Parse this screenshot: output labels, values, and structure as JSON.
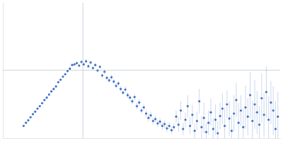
{
  "chart_data": {
    "type": "scatter",
    "color": "#4472c4",
    "grid": false,
    "tick_labels": false,
    "marker": "circle",
    "xlim": [
      0,
      6
    ],
    "ylim": [
      0,
      2.2
    ],
    "xticks": [],
    "yticks": [],
    "reference_lines": {
      "x": 1.732,
      "y": 1.104
    },
    "x": [
      0.45,
      0.5,
      0.55,
      0.6,
      0.65,
      0.7,
      0.75,
      0.8,
      0.85,
      0.9,
      0.95,
      1.0,
      1.05,
      1.1,
      1.15,
      1.2,
      1.25,
      1.3,
      1.35,
      1.4,
      1.45,
      1.5,
      1.55,
      1.6,
      1.65,
      1.7,
      1.75,
      1.8,
      1.85,
      1.9,
      1.95,
      2.0,
      2.05,
      2.1,
      2.15,
      2.2,
      2.25,
      2.3,
      2.35,
      2.4,
      2.45,
      2.5,
      2.55,
      2.6,
      2.65,
      2.7,
      2.75,
      2.8,
      2.85,
      2.9,
      2.95,
      3.0,
      3.05,
      3.1,
      3.15,
      3.2,
      3.25,
      3.3,
      3.35,
      3.4,
      3.45,
      3.5,
      3.55,
      3.6,
      3.65,
      3.7,
      3.75,
      3.8,
      3.85,
      3.9,
      3.95,
      4.0,
      4.05,
      4.1,
      4.15,
      4.2,
      4.25,
      4.3,
      4.35,
      4.4,
      4.45,
      4.5,
      4.55,
      4.6,
      4.65,
      4.7,
      4.75,
      4.8,
      4.85,
      4.9,
      4.95,
      5.0,
      5.05,
      5.1,
      5.15,
      5.2,
      5.25,
      5.3,
      5.35,
      5.4,
      5.45,
      5.5,
      5.55,
      5.6,
      5.65,
      5.7,
      5.75,
      5.8,
      5.85,
      5.9,
      5.95
    ],
    "values": [
      0.2,
      0.25,
      0.29,
      0.34,
      0.39,
      0.43,
      0.48,
      0.52,
      0.57,
      0.62,
      0.66,
      0.71,
      0.76,
      0.8,
      0.84,
      0.91,
      0.95,
      1.0,
      1.04,
      1.09,
      1.13,
      1.19,
      1.2,
      1.22,
      1.18,
      1.24,
      1.2,
      1.25,
      1.17,
      1.23,
      1.14,
      1.19,
      1.1,
      1.16,
      1.02,
      1.08,
      0.98,
      0.94,
      0.99,
      0.92,
      0.85,
      0.89,
      0.8,
      0.74,
      0.79,
      0.7,
      0.66,
      0.6,
      0.67,
      0.52,
      0.58,
      0.45,
      0.5,
      0.4,
      0.33,
      0.37,
      0.28,
      0.31,
      0.24,
      0.27,
      0.2,
      0.23,
      0.16,
      0.2,
      0.13,
      0.18,
      0.35,
      0.22,
      0.45,
      0.15,
      0.3,
      0.52,
      0.2,
      0.38,
      0.12,
      0.28,
      0.6,
      0.18,
      0.33,
      0.1,
      0.25,
      0.42,
      0.15,
      0.3,
      0.08,
      0.36,
      0.48,
      0.2,
      0.55,
      0.32,
      0.12,
      0.4,
      0.62,
      0.25,
      0.45,
      0.18,
      0.5,
      0.35,
      0.7,
      0.28,
      0.55,
      0.42,
      0.22,
      0.65,
      0.38,
      0.75,
      0.3,
      0.58,
      0.45,
      0.15,
      0.35
    ],
    "errors": [
      0.01,
      0.01,
      0.01,
      0.01,
      0.01,
      0.01,
      0.01,
      0.01,
      0.01,
      0.01,
      0.01,
      0.02,
      0.02,
      0.02,
      0.02,
      0.02,
      0.02,
      0.02,
      0.02,
      0.02,
      0.02,
      0.02,
      0.03,
      0.03,
      0.03,
      0.03,
      0.03,
      0.03,
      0.03,
      0.03,
      0.03,
      0.03,
      0.03,
      0.03,
      0.04,
      0.04,
      0.04,
      0.04,
      0.04,
      0.04,
      0.04,
      0.04,
      0.04,
      0.04,
      0.05,
      0.05,
      0.05,
      0.05,
      0.05,
      0.05,
      0.05,
      0.05,
      0.05,
      0.05,
      0.06,
      0.06,
      0.06,
      0.06,
      0.06,
      0.06,
      0.06,
      0.06,
      0.06,
      0.06,
      0.06,
      0.06,
      0.1,
      0.12,
      0.15,
      0.1,
      0.12,
      0.18,
      0.14,
      0.16,
      0.12,
      0.15,
      0.2,
      0.18,
      0.25,
      0.15,
      0.2,
      0.22,
      0.18,
      0.25,
      0.2,
      0.22,
      0.25,
      0.3,
      0.22,
      0.28,
      0.25,
      0.3,
      0.28,
      0.32,
      0.25,
      0.3,
      0.35,
      0.3,
      0.38,
      0.32,
      0.4,
      0.35,
      0.3,
      0.4,
      0.36,
      0.42,
      0.38,
      0.35,
      0.4,
      0.45,
      0.4
    ]
  }
}
